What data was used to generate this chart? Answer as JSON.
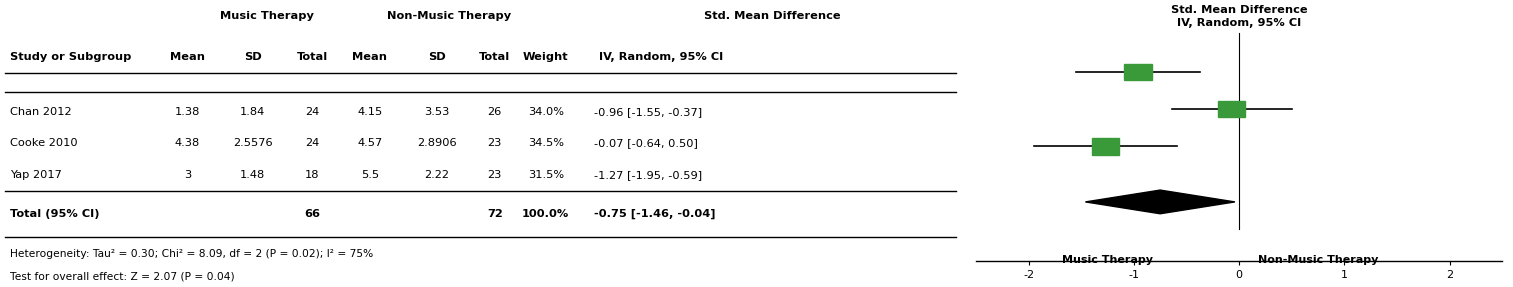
{
  "studies": [
    "Chan 2012",
    "Cooke 2010",
    "Yap 2017"
  ],
  "mt_mean": [
    "1.38",
    "4.38",
    "3"
  ],
  "mt_sd": [
    "1.84",
    "2.5576",
    "1.48"
  ],
  "mt_total": [
    "24",
    "24",
    "18"
  ],
  "nmt_mean": [
    "4.15",
    "4.57",
    "5.5"
  ],
  "nmt_sd": [
    "3.53",
    "2.8906",
    "2.22"
  ],
  "nmt_total": [
    "26",
    "23",
    "23"
  ],
  "weight": [
    "34.0%",
    "34.5%",
    "31.5%"
  ],
  "smd": [
    -0.96,
    -0.07,
    -1.27
  ],
  "ci_lower": [
    -1.55,
    -0.64,
    -1.95
  ],
  "ci_upper": [
    -0.37,
    0.5,
    -0.59
  ],
  "smd_text": [
    "-0.96 [-1.55, -0.37]",
    "-0.07 [-0.64, 0.50]",
    "-1.27 [-1.95, -0.59]"
  ],
  "total_mt": "66",
  "total_nmt": "72",
  "total_weight": "100.0%",
  "total_smd": -0.75,
  "total_ci_lower": -1.46,
  "total_ci_upper": -0.04,
  "total_smd_text": "-0.75 [-1.46, -0.04]",
  "heterogeneity_text": "Heterogeneity: Tau² = 0.30; Chi² = 8.09, df = 2 (P = 0.02); I² = 75%",
  "overall_effect_text": "Test for overall effect: Z = 2.07 (P = 0.04)",
  "square_color": "#3a9a3a",
  "diamond_color": "#000000",
  "axis_min": -2.5,
  "axis_max": 2.5,
  "axis_ticks": [
    -2,
    -1,
    0,
    1,
    2
  ],
  "xlabel_left": "Music Therapy",
  "xlabel_right": "Non-Music Therapy",
  "background_color": "#ffffff"
}
